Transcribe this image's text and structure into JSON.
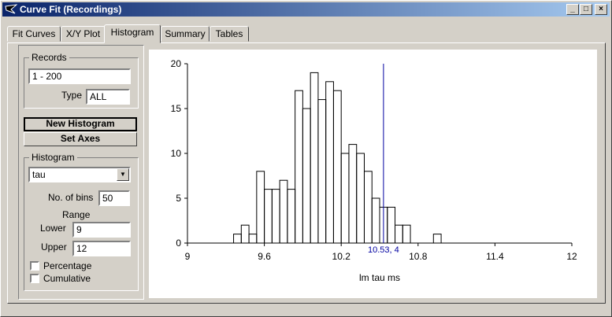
{
  "window": {
    "title": "Curve Fit (Recordings)"
  },
  "tabs": [
    {
      "label": "Fit Curves"
    },
    {
      "label": "X/Y Plot"
    },
    {
      "label": "Histogram",
      "active": true
    },
    {
      "label": "Summary"
    },
    {
      "label": "Tables"
    }
  ],
  "records": {
    "legend": "Records",
    "range_value": "1 - 200",
    "type_label": "Type",
    "type_value": "ALL"
  },
  "buttons": {
    "new_histogram": "New Histogram",
    "set_axes": "Set Axes"
  },
  "histogram": {
    "legend": "Histogram",
    "variable": "tau",
    "bins_label": "No. of bins",
    "bins_value": "50",
    "range_label": "Range",
    "lower_label": "Lower",
    "lower_value": "9",
    "upper_label": "Upper",
    "upper_value": "12",
    "percentage_label": "Percentage",
    "percentage_checked": false,
    "cumulative_label": "Cumulative",
    "cumulative_checked": false
  },
  "chart_data": {
    "type": "bar",
    "style": "step histogram",
    "xlabel": "lm tau ms",
    "ylabel": "",
    "xlim": [
      9,
      12
    ],
    "ylim": [
      0,
      20
    ],
    "xticks": [
      "9",
      "9.6",
      "10.2",
      "10.8",
      "11.4",
      "12"
    ],
    "yticks": [
      "0",
      "5",
      "10",
      "15",
      "20"
    ],
    "bin_width": 0.06,
    "bin_starts": [
      9.36,
      9.42,
      9.48,
      9.54,
      9.6,
      9.66,
      9.72,
      9.78,
      9.84,
      9.9,
      9.96,
      10.02,
      10.08,
      10.14,
      10.2,
      10.26,
      10.32,
      10.38,
      10.44,
      10.5,
      10.56,
      10.62,
      10.68,
      10.74,
      10.8,
      10.86,
      10.92
    ],
    "values": [
      1,
      2,
      1,
      8,
      6,
      6,
      7,
      6,
      17,
      15,
      19,
      16,
      18,
      17,
      10,
      11,
      10,
      8,
      5,
      4,
      4,
      2,
      2,
      0,
      0,
      0,
      1
    ],
    "cursor": {
      "x": 10.53,
      "label": "10.53, 4"
    },
    "colors": {
      "bars": "#000000",
      "cursor": "#0000a0",
      "axes": "#000000"
    }
  }
}
